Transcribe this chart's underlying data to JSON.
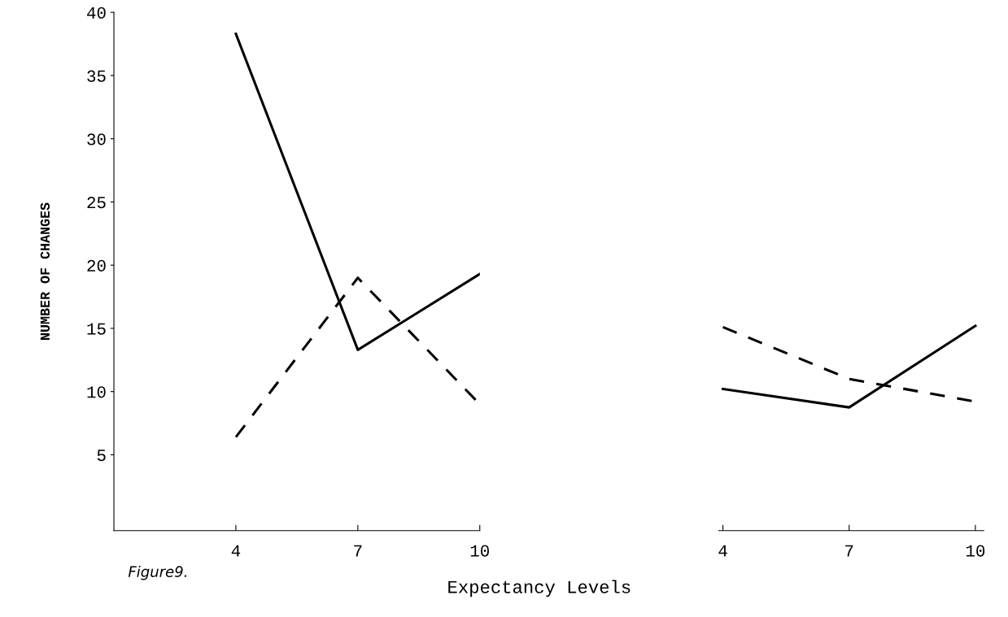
{
  "chart_data": [
    {
      "type": "line",
      "x": [
        4,
        7,
        10
      ],
      "xlim": [
        1,
        10
      ],
      "xticks": [
        4,
        7,
        10
      ],
      "ylim": [
        -1,
        40
      ],
      "yticks": [
        5,
        10,
        15,
        20,
        25,
        30,
        35,
        40
      ],
      "ylabel": "NUMBER OF CHANGES",
      "xlabel": "Expectancy Levels",
      "annotations": [
        "Figure9."
      ],
      "grid": false,
      "marker": "none",
      "series": [
        {
          "color": "#000000",
          "line_style": "solid",
          "values": [
            38.3,
            13.3,
            19.3
          ]
        },
        {
          "color": "#000000",
          "line_style": "dashed",
          "values": [
            6.4,
            19.0,
            9.0
          ]
        }
      ]
    },
    {
      "type": "line",
      "x": [
        4,
        7,
        10
      ],
      "xlim": [
        3.9,
        10.2
      ],
      "xticks": [
        4,
        7,
        10
      ],
      "ylim": [
        -1,
        40
      ],
      "yticks": [
        5,
        10,
        15,
        20,
        25,
        30,
        35,
        40
      ],
      "tick_labels": "x",
      "grid": false,
      "marker": "none",
      "series": [
        {
          "color": "#000000",
          "line_style": "solid",
          "values": [
            10.2,
            8.75,
            15.2
          ]
        },
        {
          "color": "#000000",
          "line_style": "dashed",
          "values": [
            15.1,
            11.0,
            9.2
          ]
        }
      ]
    }
  ]
}
